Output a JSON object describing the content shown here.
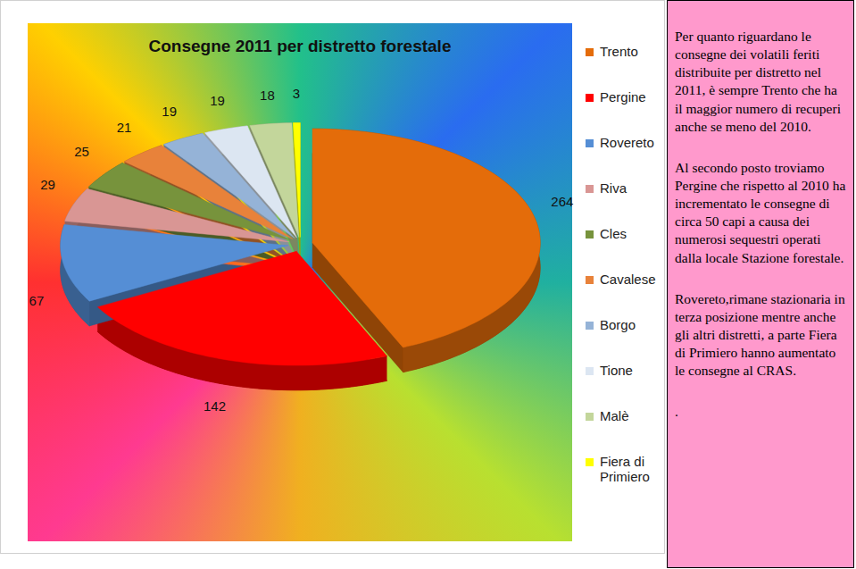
{
  "chart_data": {
    "type": "pie",
    "title": "Consegne 2011 per distretto forestale",
    "categories": [
      "Trento",
      "Pergine",
      "Rovereto",
      "Riva",
      "Cles",
      "Cavalese",
      "Borgo",
      "Tione",
      "Malè",
      "Fiera di Primiero"
    ],
    "values": [
      264,
      142,
      67,
      29,
      25,
      21,
      19,
      19,
      18,
      3
    ],
    "colors": [
      "#e46c0a",
      "#ff0000",
      "#558ed5",
      "#d99694",
      "#77933c",
      "#e8823a",
      "#95b3d7",
      "#dce6f2",
      "#c3d69b",
      "#ffff00"
    ],
    "data_labels": true,
    "legend": "right"
  },
  "text_panel": {
    "paragraphs": [
      "Per quanto riguardano  le consegne dei volatili feriti distribuite per distretto nel 2011,  è sempre Trento che ha il maggior numero di recuperi anche se meno del 2010.",
      "Al secondo posto troviamo Pergine che rispetto al 2010 ha incrementato le consegne di circa 50 capi a causa dei numerosi sequestri operati dalla locale Stazione forestale.",
      "Rovereto,rimane stazionaria  in terza posizione mentre anche gli altri distretti, a parte Fiera di Primiero hanno aumentato le consegne al CRAS.",
      "."
    ]
  }
}
